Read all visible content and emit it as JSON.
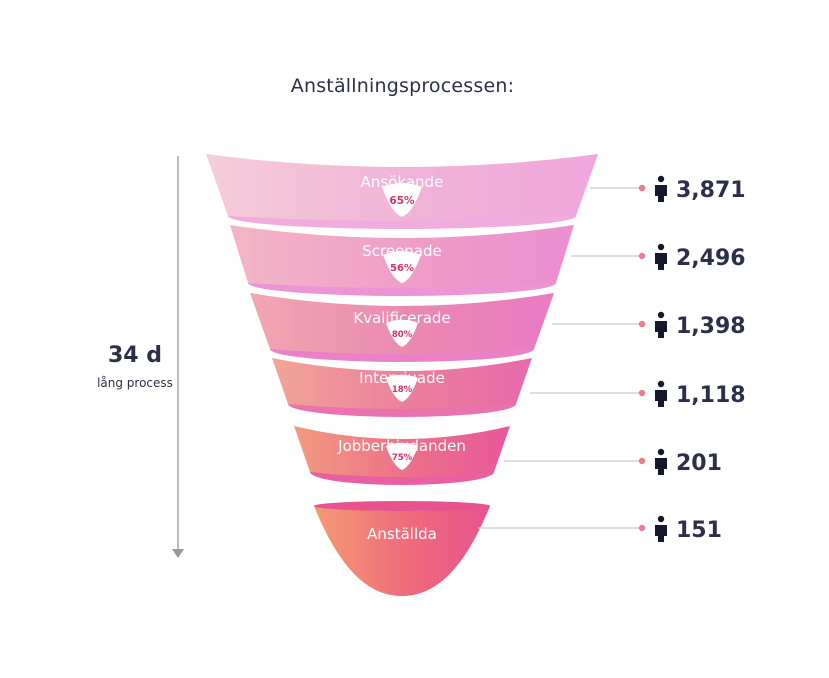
{
  "title": "Anställningsprocessen:",
  "duration": {
    "value": "34 d",
    "label": "lång process"
  },
  "stages": [
    {
      "label": "Ansökande",
      "count": "3,871",
      "conversion": "65%"
    },
    {
      "label": "Screenade",
      "count": "2,496",
      "conversion": "56%"
    },
    {
      "label": "Kvalificerade",
      "count": "1,398",
      "conversion": "80%"
    },
    {
      "label": "Intervjuade",
      "count": "1,118",
      "conversion": "18%"
    },
    {
      "label": "Jobberbjudanden",
      "count": "201",
      "conversion": "75%"
    },
    {
      "label": "Anställda",
      "count": "151"
    }
  ],
  "icons": {
    "count_icon": "person-icon",
    "duration_arrow": "arrow-down-icon"
  },
  "colors": {
    "text": "#2b2f4a",
    "conversion_text": "#d6336c",
    "connector_dot": "#f07b8c",
    "connector_line": "#c9c9c9",
    "axis": "#999999",
    "bands": [
      [
        "#f5cdd9",
        "#f0b2d8",
        "#f0a6dc"
      ],
      [
        "#f3b6c6",
        "#ee9cc8",
        "#ec8ed2"
      ],
      [
        "#f1a7b1",
        "#ea88b1",
        "#e97ac4"
      ],
      [
        "#f2a598",
        "#eb7d9c",
        "#e86aab"
      ],
      [
        "#f29a7f",
        "#ec6f8a",
        "#e7579c"
      ],
      [
        "#f49a74",
        "#ee6a7b",
        "#e7538e"
      ]
    ]
  }
}
